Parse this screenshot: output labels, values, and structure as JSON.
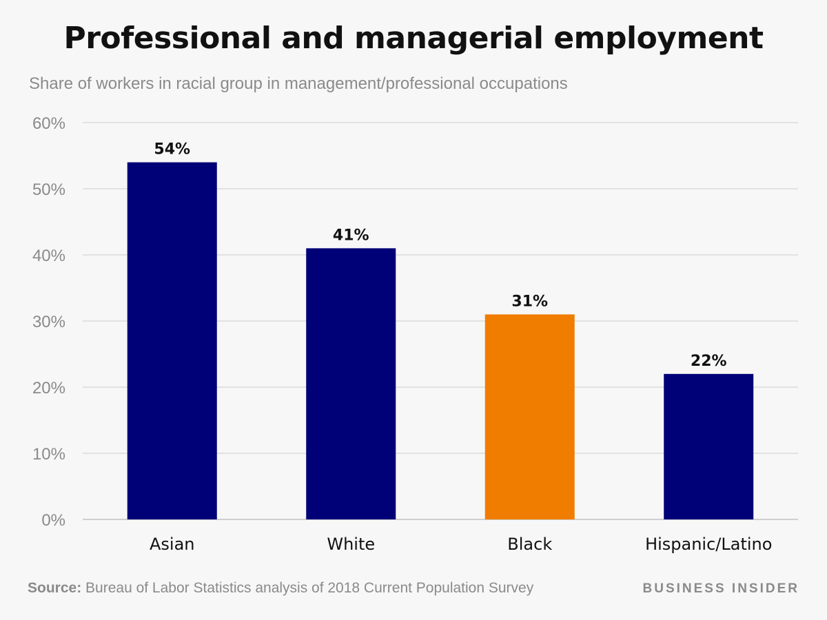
{
  "header": {
    "title": "Professional and managerial employment",
    "subtitle": "Share of workers in racial group in management/professional occupations"
  },
  "chart_data": {
    "type": "bar",
    "categories": [
      "Asian",
      "White",
      "Black",
      "Hispanic/Latino"
    ],
    "values": [
      54,
      41,
      31,
      22
    ],
    "value_labels": [
      "54%",
      "41%",
      "31%",
      "22%"
    ],
    "ylim": [
      0,
      60
    ],
    "yticks": [
      0,
      10,
      20,
      30,
      40,
      50,
      60
    ],
    "ytick_labels": [
      "0%",
      "10%",
      "20%",
      "30%",
      "40%",
      "50%",
      "60%"
    ],
    "grid": true,
    "bar_colors": [
      "#000077",
      "#000077",
      "#f07d00",
      "#000077"
    ],
    "title": "Professional and managerial employment",
    "xlabel": "",
    "ylabel": ""
  },
  "footer": {
    "source_label": "Source:",
    "source_text": "Bureau of Labor Statistics analysis of 2018 Current Population Survey",
    "brand": "BUSINESS INSIDER"
  }
}
